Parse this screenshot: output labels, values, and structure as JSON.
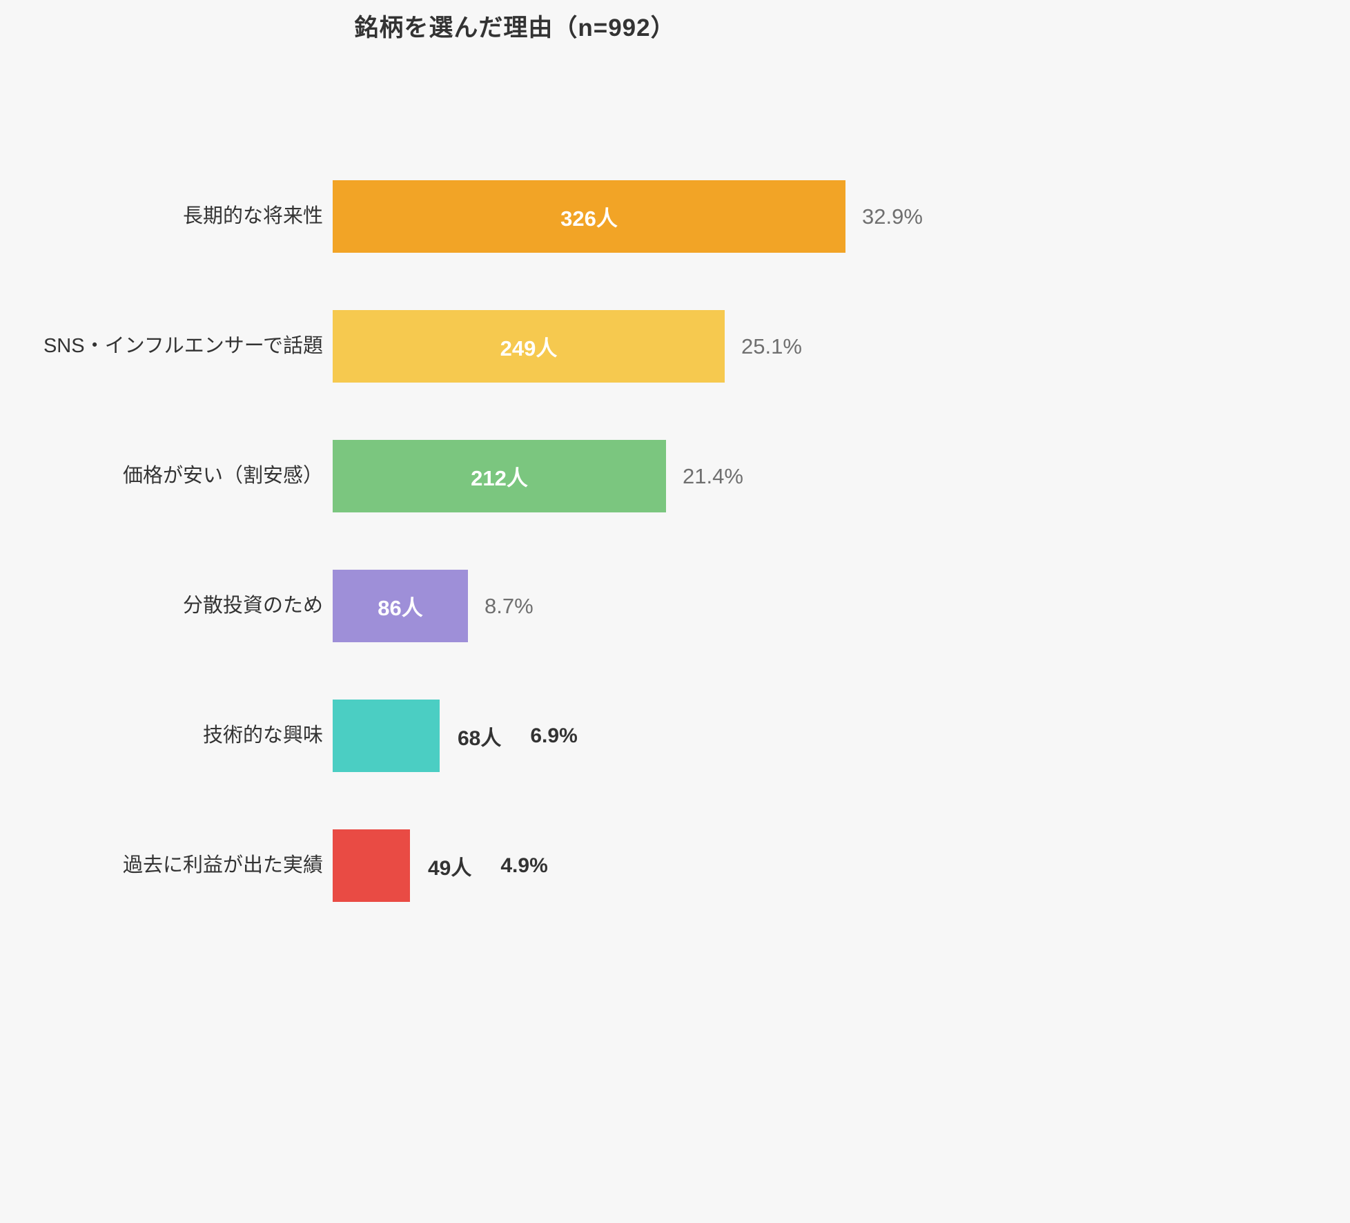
{
  "title": "銘柄を選んだ理由（n=992）",
  "colors": {
    "background": "#f7f7f7",
    "title_text": "#333333",
    "label_text": "#333333",
    "percent_text": "#6f6f6f",
    "inside_value_text": "#ffffff"
  },
  "chart_data": {
    "type": "bar",
    "orientation": "horizontal",
    "title": "銘柄を選んだ理由（n=992）",
    "xlabel": "",
    "ylabel": "",
    "categories": [
      "長期的な将来性",
      "SNS・インフルエンサーで話題",
      "価格が安い（割安感）",
      "分散投資のため",
      "技術的な興味",
      "過去に利益が出た実績"
    ],
    "values": [
      326,
      249,
      212,
      86,
      68,
      49
    ],
    "value_labels": [
      "326人",
      "249人",
      "212人",
      "86人",
      "68人",
      "49人"
    ],
    "percent_labels": [
      "32.9%",
      "25.1%",
      "21.4%",
      "8.7%",
      "6.9%",
      "4.9%"
    ],
    "bar_colors": [
      "#f2a426",
      "#f6c94f",
      "#7bc67f",
      "#9e8fd8",
      "#4bcec3",
      "#e94b44"
    ],
    "n_total": 992,
    "grid": false,
    "legend": false
  }
}
